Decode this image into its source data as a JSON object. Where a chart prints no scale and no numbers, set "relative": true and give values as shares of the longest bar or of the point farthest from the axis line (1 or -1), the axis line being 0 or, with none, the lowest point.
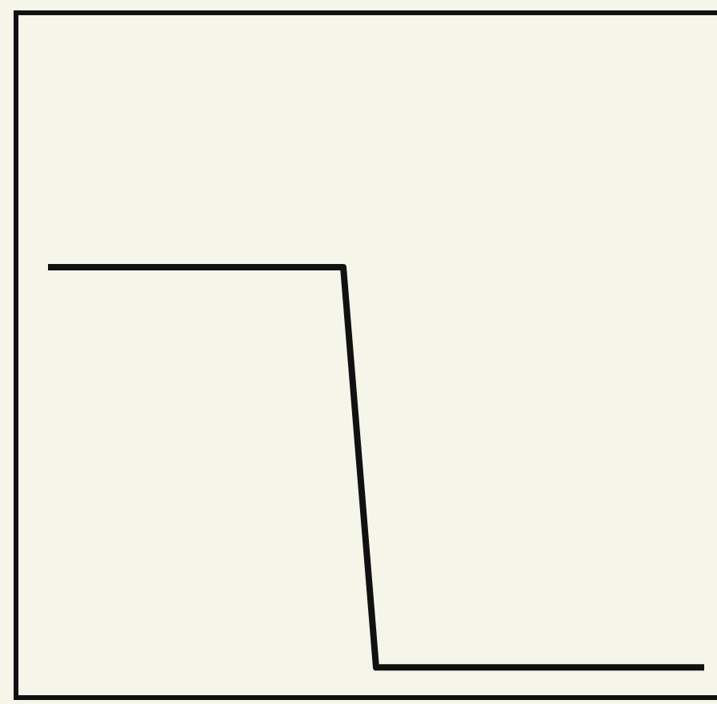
{
  "chart_data": {
    "type": "line",
    "relative": true,
    "categories": [
      null,
      null,
      null,
      null,
      null,
      null,
      null,
      null,
      null,
      null,
      null,
      null,
      null,
      null,
      null,
      null,
      null,
      null,
      null,
      null,
      null
    ],
    "series": [
      {
        "color": "#111111",
        "values": [
          1,
          1,
          1,
          1,
          1,
          1,
          1,
          1,
          1,
          1,
          0.07,
          0.07,
          0.07,
          0.07,
          0.07,
          0.07,
          0.07,
          0.07,
          0.07,
          0.07,
          0.07
        ]
      }
    ],
    "marker": "none",
    "line_style": "solid"
  }
}
